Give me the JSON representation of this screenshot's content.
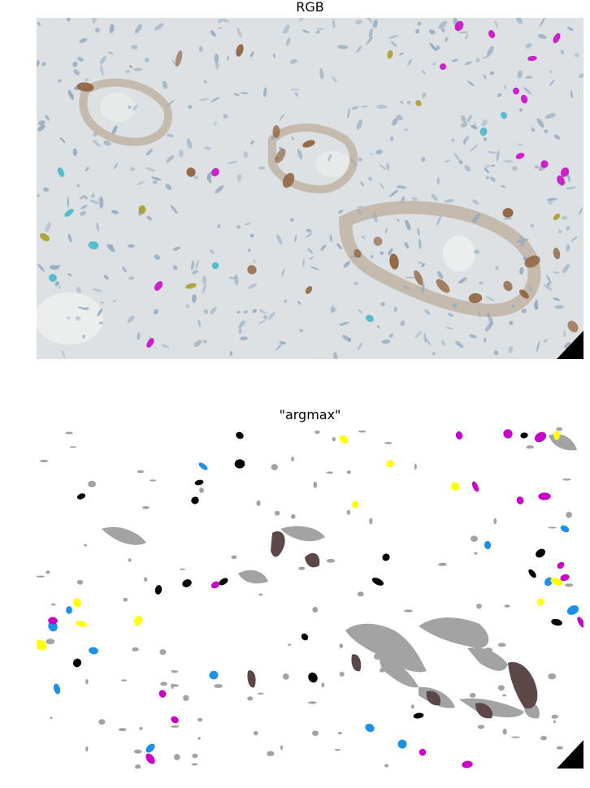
{
  "figure": {
    "panels": [
      {
        "id": "rgb",
        "title": "RGB"
      },
      {
        "id": "argmax",
        "title": "\"argmax\""
      }
    ]
  },
  "colors": {
    "tissue_bg": "#dde1e3",
    "nuclei_blue": "#8fa6bd",
    "dab_brown": "#8a5a34",
    "argmax_gray": "#a3a3a3",
    "argmax_darkbrown": "#5c4848",
    "argmax_black": "#000000",
    "argmax_blue": "#1e90e8",
    "argmax_yellow": "#ffff00",
    "argmax_magenta": "#c800c8",
    "cyan": "#3fb6c8",
    "olive": "#a89a20"
  }
}
